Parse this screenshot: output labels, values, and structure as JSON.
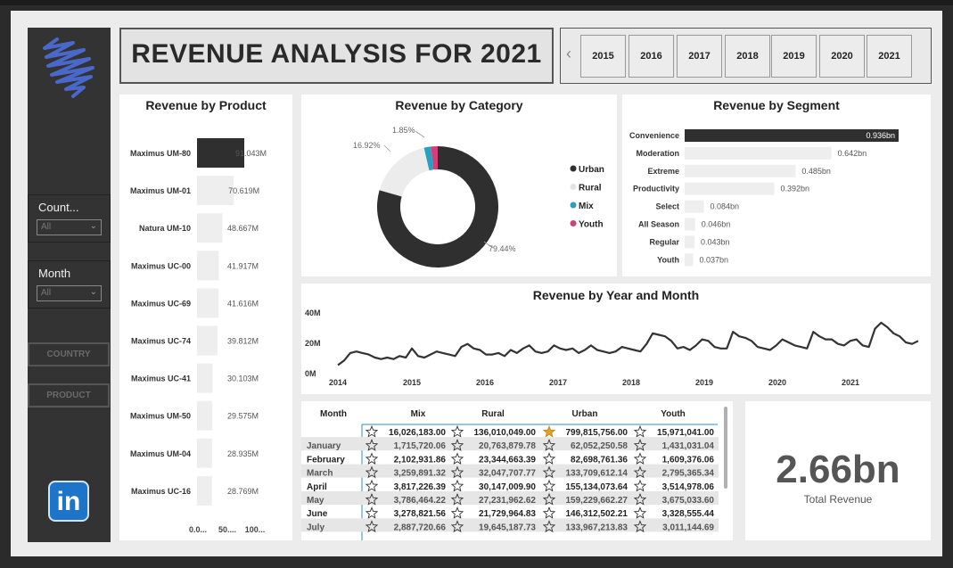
{
  "title": "REVENUE ANALYSIS FOR 2021",
  "years": [
    "2015",
    "2016",
    "2017",
    "2018",
    "2019",
    "2020",
    "2021"
  ],
  "slicers": {
    "country": {
      "title": "Count...",
      "value": "All"
    },
    "month": {
      "title": "Month",
      "value": "All"
    }
  },
  "nav": {
    "country": "COUNTRY",
    "product": "PRODUCT"
  },
  "kpi": {
    "value": "2.66bn",
    "label": "Total Revenue"
  },
  "chart_data": [
    {
      "type": "bar",
      "title": "Revenue by Product",
      "orientation": "horizontal",
      "categories": [
        "Maximus UM-80",
        "Maximus UM-01",
        "Natura UM-10",
        "Maximus UC-00",
        "Maximus UC-69",
        "Maximus UC-74",
        "Maximus UC-41",
        "Maximus UM-50",
        "Maximus UM-04",
        "Maximus UC-16"
      ],
      "values": [
        91.043,
        70.619,
        48.667,
        41.917,
        41.616,
        39.812,
        30.103,
        29.575,
        28.935,
        28.769
      ],
      "labels": [
        "91.043M",
        "70.619M",
        "48.667M",
        "41.917M",
        "41.616M",
        "39.812M",
        "30.103M",
        "29.575M",
        "28.935M",
        "28.769M"
      ],
      "xticks": [
        "0.0...",
        "50....",
        "100..."
      ]
    },
    {
      "type": "pie",
      "title": "Revenue by Category",
      "categories": [
        "Urban",
        "Rural",
        "Mix",
        "Youth"
      ],
      "values": [
        79.44,
        16.92,
        1.85,
        1.79
      ],
      "labels": [
        "79.44%",
        "16.92%",
        "1.85%",
        ""
      ],
      "colors": [
        "#2f2f2f",
        "#ececec",
        "#2aa0c0",
        "#d43f7a"
      ],
      "legend": "right"
    },
    {
      "type": "bar",
      "title": "Revenue by Segment",
      "orientation": "horizontal",
      "categories": [
        "Convenience",
        "Moderation",
        "Extreme",
        "Productivity",
        "Select",
        "All Season",
        "Regular",
        "Youth"
      ],
      "values": [
        0.936,
        0.642,
        0.485,
        0.392,
        0.084,
        0.046,
        0.043,
        0.037
      ],
      "labels": [
        "0.936bn",
        "0.642bn",
        "0.485bn",
        "0.392bn",
        "0.084bn",
        "0.046bn",
        "0.043bn",
        "0.037bn"
      ]
    },
    {
      "type": "line",
      "title": "Revenue by Year and Month",
      "yticks": [
        "0M",
        "20M",
        "40M"
      ],
      "ylim": [
        0,
        40
      ],
      "xticks": [
        "2014",
        "2015",
        "2016",
        "2017",
        "2018",
        "2019",
        "2020",
        "2021"
      ],
      "values": [
        5,
        8,
        13,
        14,
        13,
        12,
        10,
        9,
        10,
        9,
        11,
        10,
        16,
        11,
        10,
        12,
        14,
        13,
        12,
        11,
        17,
        19,
        16,
        15,
        12,
        12,
        13,
        11,
        15,
        13,
        16,
        18,
        14,
        13,
        14,
        18,
        16,
        15,
        16,
        13,
        15,
        18,
        15,
        14,
        13,
        14,
        17,
        16,
        15,
        14,
        19,
        26,
        25,
        24,
        21,
        16,
        17,
        15,
        18,
        22,
        21,
        17,
        16,
        16,
        27,
        24,
        23,
        21,
        17,
        16,
        15,
        18,
        22,
        20,
        18,
        17,
        16,
        27,
        24,
        22,
        22,
        19,
        18,
        21,
        22,
        18,
        17,
        29,
        33,
        30,
        26,
        24,
        20,
        19,
        21
      ]
    },
    {
      "type": "table",
      "columns": [
        "Month",
        "Mix",
        "Rural",
        "Urban",
        "Youth"
      ],
      "total": [
        "",
        "16,026,183.00",
        "136,010,049.00",
        "799,815,756.00",
        "15,971,041.00"
      ],
      "rows": [
        [
          "January",
          "1,715,720.06",
          "20,763,879.78",
          "62,052,250.58",
          "1,431,031.04"
        ],
        [
          "February",
          "2,102,931.86",
          "23,344,663.39",
          "82,698,761.36",
          "1,609,376.06"
        ],
        [
          "March",
          "3,259,891.32",
          "32,047,707.77",
          "133,709,612.14",
          "2,795,365.34"
        ],
        [
          "April",
          "3,817,226.39",
          "30,147,009.90",
          "155,134,073.64",
          "3,514,978.06"
        ],
        [
          "May",
          "3,786,464.22",
          "27,231,962.62",
          "159,229,662.27",
          "3,675,033.60"
        ],
        [
          "June",
          "3,278,821.56",
          "21,729,964.83",
          "146,312,502.21",
          "3,328,555.44"
        ],
        [
          "July",
          "2,887,720.66",
          "19,645,187.73",
          "133,967,213.83",
          "3,011,144.69"
        ]
      ]
    }
  ]
}
